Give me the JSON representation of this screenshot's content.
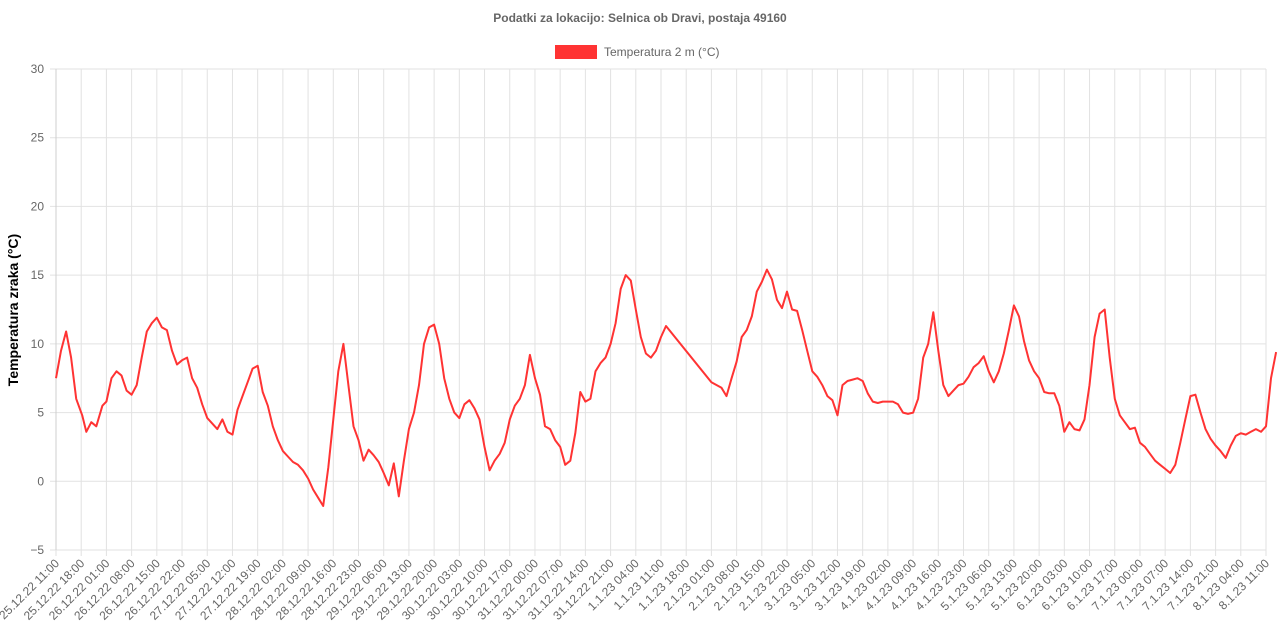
{
  "chart_data": {
    "type": "line",
    "title": "Podatki za lokacijo: Selnica ob Dravi, postaja 49160",
    "ylabel": "Temperatura zraka (°C)",
    "xlabel": "",
    "ylim": [
      -5,
      30
    ],
    "yticks": [
      "30",
      "25",
      "20",
      "15",
      "10",
      "5",
      "0",
      "−5"
    ],
    "ytick_values": [
      30,
      25,
      20,
      15,
      10,
      5,
      0,
      -5
    ],
    "grid": true,
    "legend_position": "top",
    "series_color": "#ff3333",
    "categories": [
      "25.12.22 11:00",
      "25.12.22 18:00",
      "26.12.22 01:00",
      "26.12.22 08:00",
      "26.12.22 15:00",
      "26.12.22 22:00",
      "27.12.22 05:00",
      "27.12.22 12:00",
      "27.12.22 19:00",
      "28.12.22 02:00",
      "28.12.22 09:00",
      "28.12.22 16:00",
      "28.12.22 23:00",
      "29.12.22 06:00",
      "29.12.22 13:00",
      "29.12.22 20:00",
      "30.12.22 03:00",
      "30.12.22 10:00",
      "30.12.22 17:00",
      "31.12.22 00:00",
      "31.12.22 07:00",
      "31.12.22 14:00",
      "31.12.22 21:00",
      "1.1.23 04:00",
      "1.1.23 11:00",
      "1.1.23 18:00",
      "2.1.23 01:00",
      "2.1.23 08:00",
      "2.1.23 15:00",
      "2.1.23 22:00",
      "3.1.23 05:00",
      "3.1.23 12:00",
      "3.1.23 19:00",
      "4.1.23 02:00",
      "4.1.23 09:00",
      "4.1.23 16:00",
      "4.1.23 23:00",
      "5.1.23 06:00",
      "5.1.23 13:00",
      "5.1.23 20:00",
      "6.1.23 03:00",
      "6.1.23 10:00",
      "6.1.23 17:00",
      "7.1.23 00:00",
      "7.1.23 07:00",
      "7.1.23 14:00",
      "7.1.23 21:00",
      "8.1.23 04:00",
      "8.1.23 11:00"
    ],
    "series": [
      {
        "name": "Temperatura 2 m (°C)",
        "points": [
          [
            0,
            7.5
          ],
          [
            0.5,
            9.5
          ],
          [
            1,
            10.9
          ],
          [
            1.5,
            9
          ],
          [
            2,
            6
          ],
          [
            2.6,
            4.8
          ],
          [
            3,
            3.6
          ],
          [
            3.5,
            4.3
          ],
          [
            4,
            4
          ],
          [
            4.6,
            5.5
          ],
          [
            5,
            5.8
          ],
          [
            5.5,
            7.5
          ],
          [
            6,
            8
          ],
          [
            6.5,
            7.7
          ],
          [
            7,
            6.6
          ],
          [
            7.5,
            6.3
          ],
          [
            8,
            7
          ],
          [
            8.5,
            9
          ],
          [
            9,
            10.9
          ],
          [
            9.5,
            11.5
          ],
          [
            10,
            11.9
          ],
          [
            10.5,
            11.2
          ],
          [
            11,
            11
          ],
          [
            11.5,
            9.5
          ],
          [
            12,
            8.5
          ],
          [
            12.5,
            8.8
          ],
          [
            13,
            9
          ],
          [
            13.5,
            7.5
          ],
          [
            14,
            6.8
          ],
          [
            14.5,
            5.6
          ],
          [
            15,
            4.6
          ],
          [
            15.5,
            4.2
          ],
          [
            16,
            3.8
          ],
          [
            16.5,
            4.5
          ],
          [
            17,
            3.6
          ],
          [
            17.5,
            3.4
          ],
          [
            18,
            5.2
          ],
          [
            18.5,
            6.2
          ],
          [
            19,
            7.2
          ],
          [
            19.5,
            8.2
          ],
          [
            20,
            8.4
          ],
          [
            20.5,
            6.5
          ],
          [
            21,
            5.5
          ],
          [
            21.5,
            4
          ],
          [
            22,
            3
          ],
          [
            22.5,
            2.2
          ],
          [
            23,
            1.8
          ],
          [
            23.5,
            1.4
          ],
          [
            24,
            1.2
          ],
          [
            24.5,
            0.8
          ],
          [
            25,
            0.2
          ],
          [
            25.5,
            -0.6
          ],
          [
            26,
            -1.2
          ],
          [
            26.5,
            -1.8
          ],
          [
            27,
            1
          ],
          [
            27.5,
            4.5
          ],
          [
            28,
            8
          ],
          [
            28.5,
            10
          ],
          [
            29,
            7
          ],
          [
            29.5,
            4
          ],
          [
            30,
            3
          ],
          [
            30.5,
            1.5
          ],
          [
            31,
            2.3
          ],
          [
            31.5,
            1.9
          ],
          [
            32,
            1.4
          ],
          [
            32.5,
            0.6
          ],
          [
            33,
            -0.3
          ],
          [
            33.5,
            1.3
          ],
          [
            34,
            -1.1
          ],
          [
            34.5,
            1.5
          ],
          [
            35,
            3.8
          ],
          [
            35.5,
            5
          ],
          [
            36,
            7
          ],
          [
            36.5,
            10
          ],
          [
            37,
            11.2
          ],
          [
            37.5,
            11.4
          ],
          [
            38,
            10
          ],
          [
            38.5,
            7.5
          ],
          [
            39,
            6
          ],
          [
            39.5,
            5
          ],
          [
            40,
            4.6
          ],
          [
            40.5,
            5.6
          ],
          [
            41,
            5.9
          ],
          [
            41.5,
            5.3
          ],
          [
            42,
            4.5
          ],
          [
            42.5,
            2.5
          ],
          [
            43,
            0.8
          ],
          [
            43.5,
            1.5
          ],
          [
            44,
            2
          ],
          [
            44.5,
            2.8
          ],
          [
            45,
            4.5
          ],
          [
            45.5,
            5.5
          ],
          [
            46,
            6
          ],
          [
            46.5,
            7
          ],
          [
            47,
            9.2
          ],
          [
            47.5,
            7.5
          ],
          [
            48,
            6.3
          ],
          [
            48.5,
            4
          ],
          [
            49,
            3.8
          ],
          [
            49.5,
            3
          ],
          [
            50,
            2.5
          ],
          [
            50.5,
            1.2
          ],
          [
            51,
            1.5
          ],
          [
            51.5,
            3.5
          ],
          [
            52,
            6.5
          ],
          [
            52.5,
            5.8
          ],
          [
            53,
            6
          ],
          [
            53.5,
            8
          ],
          [
            54,
            8.6
          ],
          [
            54.5,
            9
          ],
          [
            55,
            10
          ],
          [
            55.5,
            11.5
          ],
          [
            56,
            14
          ],
          [
            56.5,
            15
          ],
          [
            57,
            14.6
          ],
          [
            57.5,
            12.5
          ],
          [
            58,
            10.5
          ],
          [
            58.5,
            9.3
          ],
          [
            59,
            9
          ],
          [
            59.5,
            9.5
          ],
          [
            60,
            10.5
          ],
          [
            60.5,
            11.3
          ],
          [
            65,
            7.2
          ],
          [
            66,
            6.8
          ],
          [
            66.5,
            6.2
          ],
          [
            67,
            7.5
          ],
          [
            67.5,
            8.7
          ],
          [
            68,
            10.5
          ],
          [
            68.5,
            11
          ],
          [
            69,
            12
          ],
          [
            69.5,
            13.8
          ],
          [
            70,
            14.5
          ],
          [
            70.5,
            15.4
          ],
          [
            71,
            14.7
          ],
          [
            71.5,
            13.2
          ],
          [
            72,
            12.6
          ],
          [
            72.5,
            13.8
          ],
          [
            73,
            12.5
          ],
          [
            73.5,
            12.4
          ],
          [
            74,
            11
          ],
          [
            74.5,
            9.5
          ],
          [
            75,
            8
          ],
          [
            75.5,
            7.6
          ],
          [
            76,
            7
          ],
          [
            76.5,
            6.2
          ],
          [
            77,
            5.9
          ],
          [
            77.5,
            4.8
          ],
          [
            78,
            7
          ],
          [
            78.5,
            7.3
          ],
          [
            79,
            7.4
          ],
          [
            79.5,
            7.5
          ],
          [
            80,
            7.3
          ],
          [
            80.5,
            6.4
          ],
          [
            81,
            5.8
          ],
          [
            81.5,
            5.7
          ],
          [
            82,
            5.8
          ],
          [
            82.5,
            5.8
          ],
          [
            83,
            5.8
          ],
          [
            83.5,
            5.6
          ],
          [
            84,
            5
          ],
          [
            84.5,
            4.9
          ],
          [
            85,
            5
          ],
          [
            85.5,
            6
          ],
          [
            86,
            9
          ],
          [
            86.5,
            10
          ],
          [
            87,
            12.3
          ],
          [
            87.5,
            9.5
          ],
          [
            88,
            7
          ],
          [
            88.5,
            6.2
          ],
          [
            89,
            6.6
          ],
          [
            89.5,
            7
          ],
          [
            90,
            7.1
          ],
          [
            90.5,
            7.6
          ],
          [
            91,
            8.3
          ],
          [
            91.5,
            8.6
          ],
          [
            92,
            9.1
          ],
          [
            92.5,
            8
          ],
          [
            93,
            7.2
          ],
          [
            93.5,
            8
          ],
          [
            94,
            9.3
          ],
          [
            94.5,
            11
          ],
          [
            95,
            12.8
          ],
          [
            95.5,
            12
          ],
          [
            96,
            10.2
          ],
          [
            96.5,
            8.8
          ],
          [
            97,
            8
          ],
          [
            97.5,
            7.5
          ],
          [
            98,
            6.5
          ],
          [
            98.5,
            6.4
          ],
          [
            99,
            6.4
          ],
          [
            99.5,
            5.5
          ],
          [
            100,
            3.6
          ],
          [
            100.5,
            4.3
          ],
          [
            101,
            3.8
          ],
          [
            101.5,
            3.7
          ],
          [
            102,
            4.5
          ],
          [
            102.5,
            7
          ],
          [
            103,
            10.5
          ],
          [
            103.5,
            12.2
          ],
          [
            104,
            12.5
          ],
          [
            104.5,
            9
          ],
          [
            105,
            6
          ],
          [
            105.5,
            4.8
          ],
          [
            106,
            4.3
          ],
          [
            106.5,
            3.8
          ],
          [
            107,
            3.9
          ],
          [
            107.5,
            2.8
          ],
          [
            108,
            2.5
          ],
          [
            108.5,
            2
          ],
          [
            109,
            1.5
          ],
          [
            109.5,
            1.2
          ],
          [
            110,
            0.9
          ],
          [
            110.5,
            0.6
          ],
          [
            111,
            1.2
          ],
          [
            111.5,
            2.8
          ],
          [
            112,
            4.5
          ],
          [
            112.5,
            6.2
          ],
          [
            113,
            6.3
          ],
          [
            113.5,
            5
          ],
          [
            114,
            3.8
          ],
          [
            114.5,
            3.1
          ],
          [
            115,
            2.6
          ],
          [
            115.5,
            2.2
          ],
          [
            116,
            1.7
          ],
          [
            116.5,
            2.6
          ],
          [
            117,
            3.3
          ],
          [
            117.5,
            3.5
          ],
          [
            118,
            3.4
          ],
          [
            118.5,
            3.6
          ],
          [
            119,
            3.8
          ],
          [
            119.5,
            3.6
          ],
          [
            120,
            4
          ],
          [
            120.5,
            7.5
          ],
          [
            121,
            9.4
          ]
        ]
      }
    ]
  }
}
